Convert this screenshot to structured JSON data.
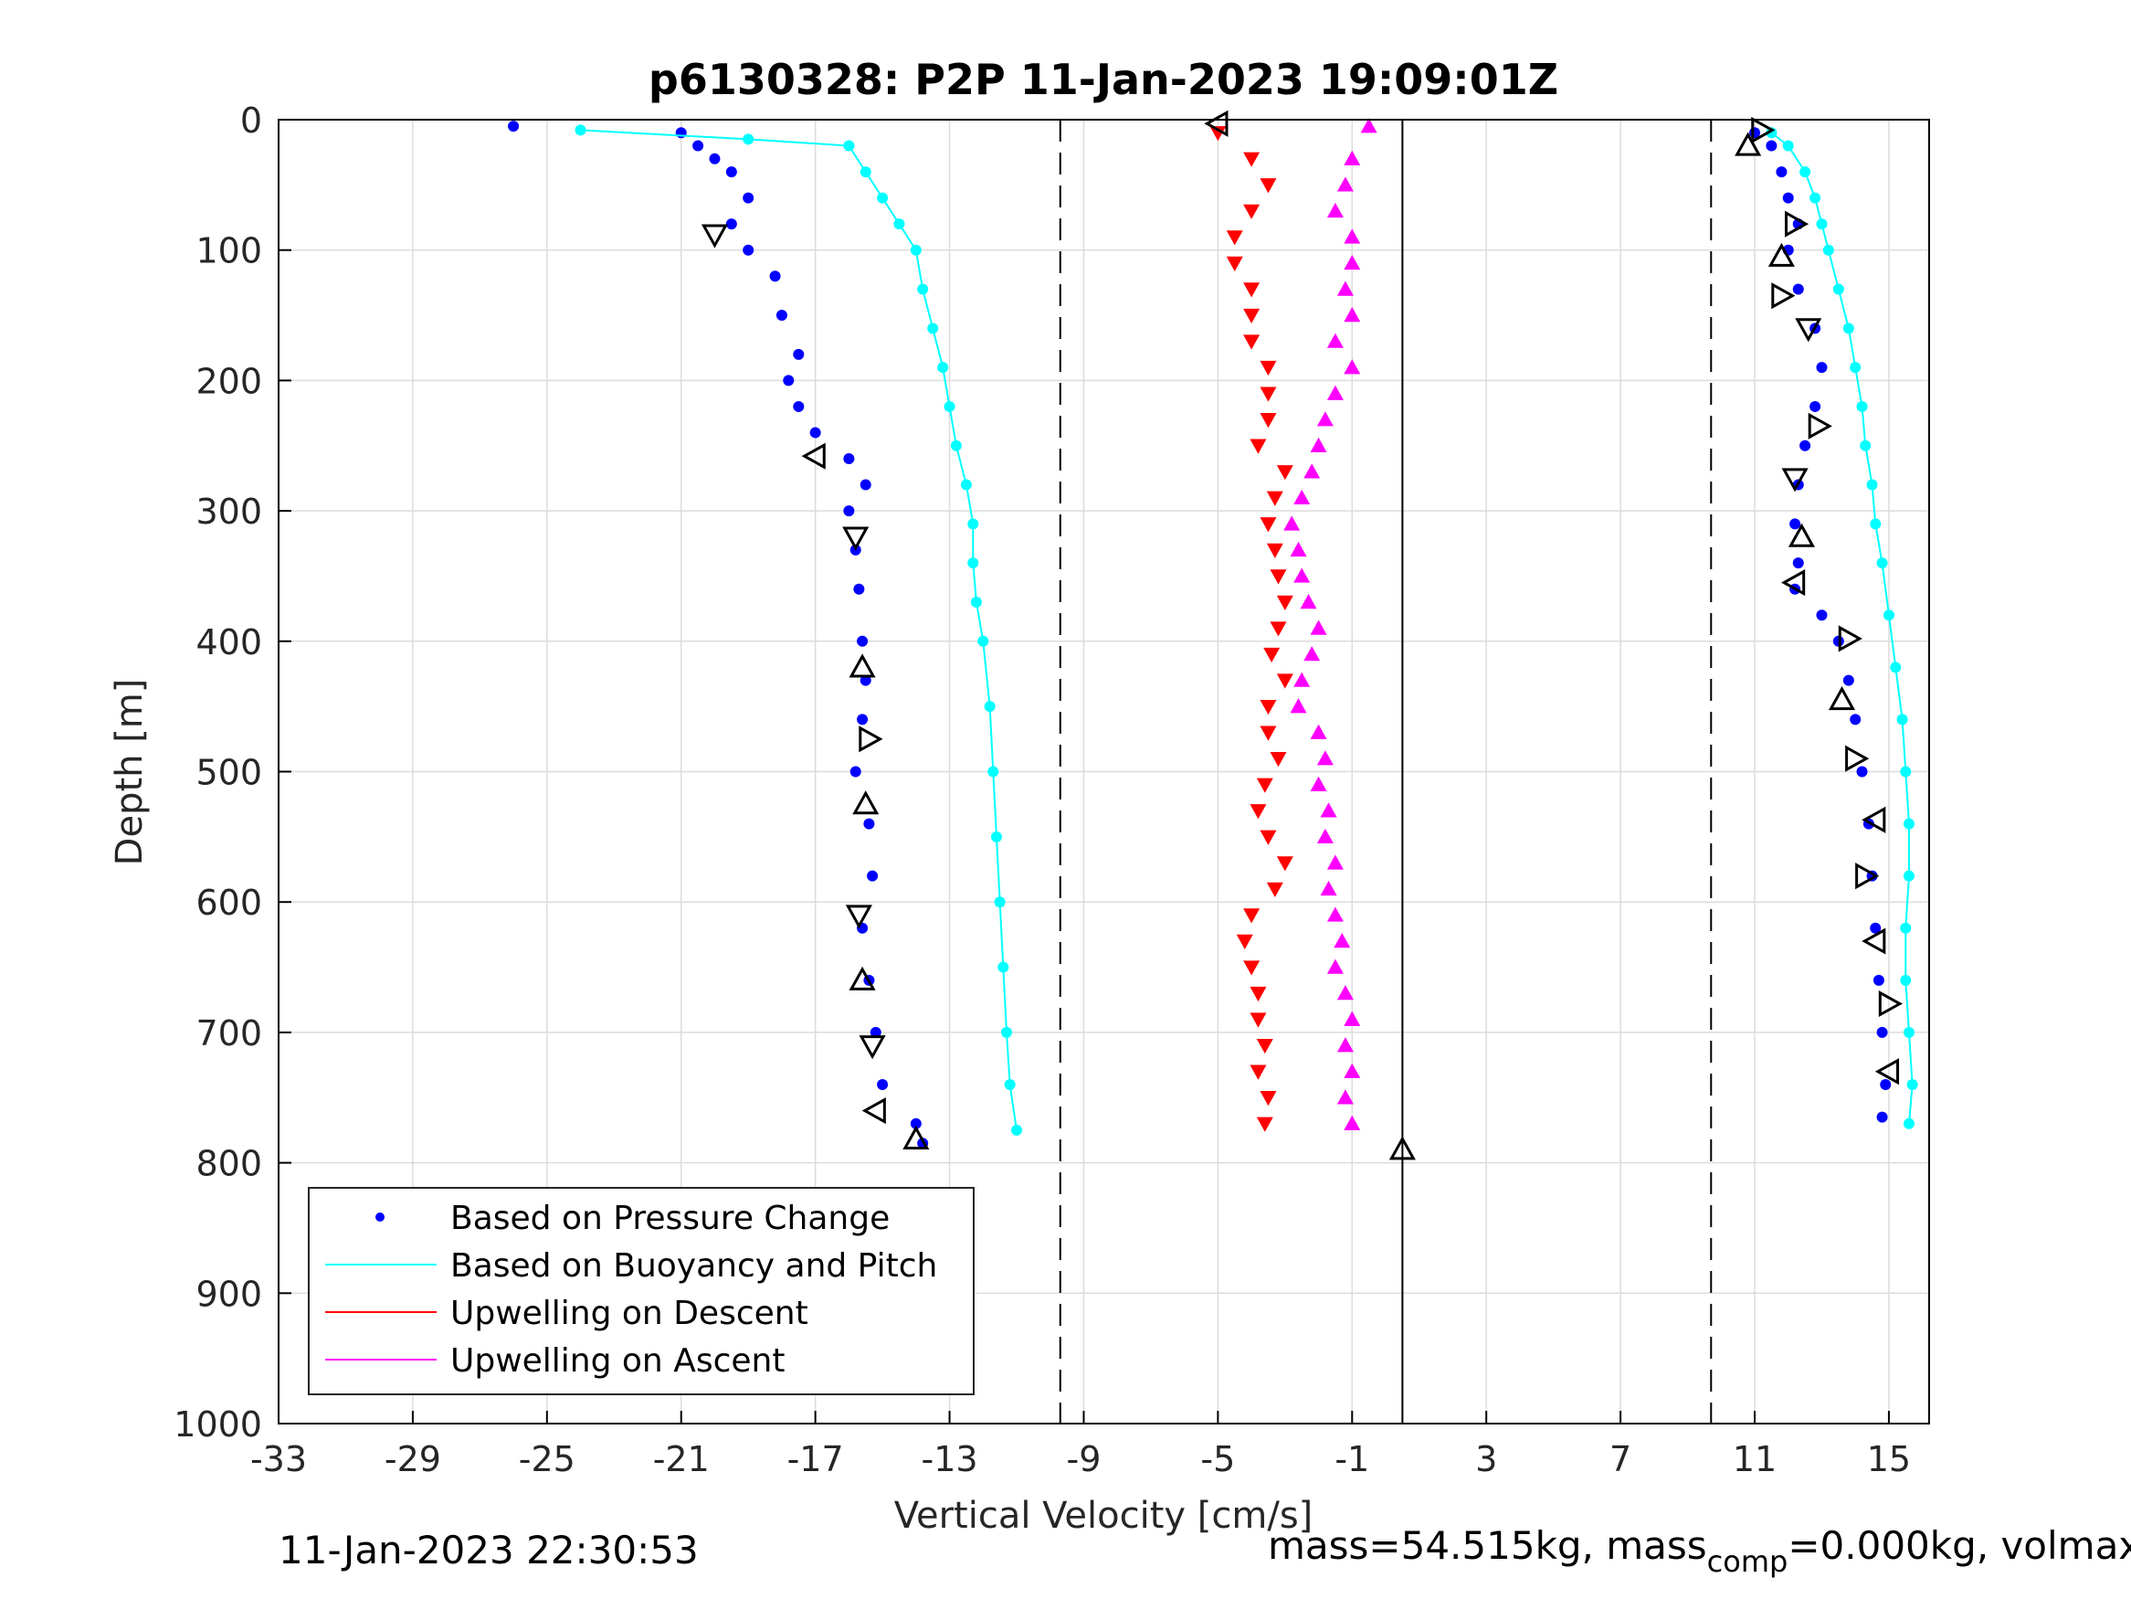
{
  "chart_data": {
    "type": "scatter",
    "title": "p6130328: P2P 11-Jan-2023 19:09:01Z",
    "xlabel": "Vertical Velocity [cm/s]",
    "ylabel": "Depth [m]",
    "xlim": [
      -33,
      16.2
    ],
    "ylim": [
      0,
      1000
    ],
    "y_reversed": true,
    "grid": true,
    "x_ticks": [
      -33,
      -29,
      -25,
      -21,
      -17,
      -13,
      -9,
      -5,
      -1,
      3,
      7,
      11,
      15
    ],
    "x_tick_labels": [
      "-33",
      "-29",
      "-25",
      "-21",
      "-17",
      "-13",
      "-9",
      "-5",
      "-1",
      "3",
      "7",
      "11",
      "15"
    ],
    "y_ticks": [
      0,
      100,
      200,
      300,
      400,
      500,
      600,
      700,
      800,
      900,
      1000
    ],
    "y_tick_labels": [
      "0",
      "100",
      "200",
      "300",
      "400",
      "500",
      "600",
      "700",
      "800",
      "900",
      "1000"
    ],
    "reference_lines": {
      "dashed_x": [
        -9.7,
        9.7
      ],
      "solid_x": [
        0.5
      ]
    },
    "legend": {
      "placement": "bottom-left",
      "entries": [
        {
          "label": "Based on Pressure Change",
          "color": "#0000ff",
          "marker": "dot"
        },
        {
          "label": "Based on Buoyancy and Pitch",
          "color": "#00ffff",
          "marker": "line"
        },
        {
          "label": "Upwelling on Descent",
          "color": "#ff0000",
          "marker": "line"
        },
        {
          "label": "Upwelling on Ascent",
          "color": "#ff00ff",
          "marker": "line"
        }
      ]
    },
    "series": [
      {
        "name": "Based on Pressure Change",
        "color": "#0000ff",
        "style": "dots",
        "groups": [
          {
            "depth": [
              5,
              10,
              20,
              30,
              40,
              60,
              80,
              100,
              120,
              150,
              180,
              200,
              220,
              240,
              260,
              280,
              300,
              330,
              360,
              400,
              430,
              460,
              500,
              540,
              580,
              620,
              660,
              700,
              740,
              770,
              785
            ],
            "velocity": [
              -26,
              -21,
              -20.5,
              -20,
              -19.5,
              -19,
              -19.5,
              -19,
              -18.2,
              -18,
              -17.5,
              -17.8,
              -17.5,
              -17,
              -16,
              -15.5,
              -16,
              -15.8,
              -15.7,
              -15.6,
              -15.5,
              -15.6,
              -15.8,
              -15.4,
              -15.3,
              -15.6,
              -15.4,
              -15.2,
              -15,
              -14,
              -13.8
            ]
          },
          {
            "depth": [
              10,
              20,
              40,
              60,
              80,
              100,
              130,
              160,
              190,
              220,
              250,
              280,
              310,
              340,
              360,
              380,
              400,
              430,
              460,
              500,
              540,
              580,
              620,
              660,
              700,
              740,
              765
            ],
            "velocity": [
              11,
              11.5,
              11.8,
              12,
              12.3,
              12,
              12.3,
              12.8,
              13,
              12.8,
              12.5,
              12.3,
              12.2,
              12.3,
              12.2,
              13,
              13.5,
              13.8,
              14,
              14.2,
              14.4,
              14.5,
              14.6,
              14.7,
              14.8,
              14.9,
              14.8
            ]
          }
        ]
      },
      {
        "name": "Based on Buoyancy and Pitch",
        "color": "#00ffff",
        "style": "dots-line",
        "groups": [
          {
            "depth": [
              8,
              15,
              20,
              40,
              60,
              80,
              100,
              130,
              160,
              190,
              220,
              250,
              280,
              310,
              340,
              370,
              400,
              450,
              500,
              550,
              600,
              650,
              700,
              740,
              775
            ],
            "velocity": [
              -24,
              -19,
              -16,
              -15.5,
              -15,
              -14.5,
              -14,
              -13.8,
              -13.5,
              -13.2,
              -13,
              -12.8,
              -12.5,
              -12.3,
              -12.3,
              -12.2,
              -12,
              -11.8,
              -11.7,
              -11.6,
              -11.5,
              -11.4,
              -11.3,
              -11.2,
              -11
            ]
          },
          {
            "depth": [
              10,
              20,
              40,
              60,
              80,
              100,
              130,
              160,
              190,
              220,
              250,
              280,
              310,
              340,
              380,
              420,
              460,
              500,
              540,
              580,
              620,
              660,
              700,
              740,
              770
            ],
            "velocity": [
              11.5,
              12,
              12.5,
              12.8,
              13,
              13.2,
              13.5,
              13.8,
              14,
              14.2,
              14.3,
              14.5,
              14.6,
              14.8,
              15,
              15.2,
              15.4,
              15.5,
              15.6,
              15.6,
              15.5,
              15.5,
              15.6,
              15.7,
              15.6
            ]
          }
        ]
      },
      {
        "name": "Upwelling on Descent",
        "color": "#ff0000",
        "style": "triangle-down",
        "depth": [
          10,
          30,
          50,
          70,
          90,
          110,
          130,
          150,
          170,
          190,
          210,
          230,
          250,
          270,
          290,
          310,
          330,
          350,
          370,
          390,
          410,
          430,
          450,
          470,
          490,
          510,
          530,
          550,
          570,
          590,
          610,
          630,
          650,
          670,
          690,
          710,
          730,
          750,
          770
        ],
        "velocity": [
          -5,
          -4,
          -3.5,
          -4,
          -4.5,
          -4.5,
          -4,
          -4,
          -4,
          -3.5,
          -3.5,
          -3.5,
          -3.8,
          -3,
          -3.3,
          -3.5,
          -3.3,
          -3.2,
          -3,
          -3.2,
          -3.4,
          -3,
          -3.5,
          -3.5,
          -3.2,
          -3.6,
          -3.8,
          -3.5,
          -3,
          -3.3,
          -4,
          -4.2,
          -4,
          -3.8,
          -3.8,
          -3.6,
          -3.8,
          -3.5,
          -3.6
        ]
      },
      {
        "name": "Upwelling on Ascent",
        "color": "#ff00ff",
        "style": "triangle-up",
        "depth": [
          5,
          30,
          50,
          70,
          90,
          110,
          130,
          150,
          170,
          190,
          210,
          230,
          250,
          270,
          290,
          310,
          330,
          350,
          370,
          390,
          410,
          430,
          450,
          470,
          490,
          510,
          530,
          550,
          570,
          590,
          610,
          630,
          650,
          670,
          690,
          710,
          730,
          750,
          770
        ],
        "velocity": [
          -0.5,
          -1,
          -1.2,
          -1.5,
          -1,
          -1,
          -1.2,
          -1,
          -1.5,
          -1,
          -1.5,
          -1.8,
          -2,
          -2.2,
          -2.5,
          -2.8,
          -2.6,
          -2.5,
          -2.3,
          -2,
          -2.2,
          -2.5,
          -2.6,
          -2,
          -1.8,
          -2,
          -1.7,
          -1.8,
          -1.5,
          -1.7,
          -1.5,
          -1.3,
          -1.5,
          -1.2,
          -1,
          -1.2,
          -1,
          -1.2,
          -1
        ]
      },
      {
        "name": "",
        "color": "#000000",
        "style": "open-triangle-markers",
        "points": [
          {
            "velocity": -20,
            "depth": 88,
            "dir": "down"
          },
          {
            "velocity": -17,
            "depth": 258,
            "dir": "left"
          },
          {
            "velocity": -15.8,
            "depth": 320,
            "dir": "down"
          },
          {
            "velocity": -15.6,
            "depth": 420,
            "dir": "up"
          },
          {
            "velocity": -15.4,
            "depth": 475,
            "dir": "right"
          },
          {
            "velocity": -15.5,
            "depth": 525,
            "dir": "up"
          },
          {
            "velocity": -15.7,
            "depth": 610,
            "dir": "down"
          },
          {
            "velocity": -15.6,
            "depth": 660,
            "dir": "up"
          },
          {
            "velocity": -15.3,
            "depth": 710,
            "dir": "down"
          },
          {
            "velocity": -15.2,
            "depth": 760,
            "dir": "left"
          },
          {
            "velocity": -14,
            "depth": 782,
            "dir": "up"
          },
          {
            "velocity": -5,
            "depth": 3,
            "dir": "left"
          },
          {
            "velocity": 11.2,
            "depth": 8,
            "dir": "right"
          },
          {
            "velocity": 10.8,
            "depth": 20,
            "dir": "up"
          },
          {
            "velocity": 12.2,
            "depth": 80,
            "dir": "right"
          },
          {
            "velocity": 11.8,
            "depth": 105,
            "dir": "up"
          },
          {
            "velocity": 11.8,
            "depth": 135,
            "dir": "right"
          },
          {
            "velocity": 12.6,
            "depth": 160,
            "dir": "down"
          },
          {
            "velocity": 12.9,
            "depth": 235,
            "dir": "right"
          },
          {
            "velocity": 12.2,
            "depth": 275,
            "dir": "down"
          },
          {
            "velocity": 12.4,
            "depth": 320,
            "dir": "up"
          },
          {
            "velocity": 12.2,
            "depth": 355,
            "dir": "left"
          },
          {
            "velocity": 13.8,
            "depth": 398,
            "dir": "right"
          },
          {
            "velocity": 13.6,
            "depth": 445,
            "dir": "up"
          },
          {
            "velocity": 14,
            "depth": 490,
            "dir": "right"
          },
          {
            "velocity": 14.6,
            "depth": 537,
            "dir": "left"
          },
          {
            "velocity": 14.3,
            "depth": 580,
            "dir": "right"
          },
          {
            "velocity": 14.6,
            "depth": 630,
            "dir": "left"
          },
          {
            "velocity": 15,
            "depth": 678,
            "dir": "right"
          },
          {
            "velocity": 15,
            "depth": 730,
            "dir": "left"
          },
          {
            "velocity": 0.5,
            "depth": 790,
            "dir": "up"
          }
        ]
      }
    ]
  },
  "footer": {
    "left_timestamp": "11-Jan-2023 22:30:53",
    "right_text_prefix": "mass=54.515kg, mass",
    "right_text_sub": "comp",
    "right_text_suffix": "=0.000kg, volmax"
  }
}
